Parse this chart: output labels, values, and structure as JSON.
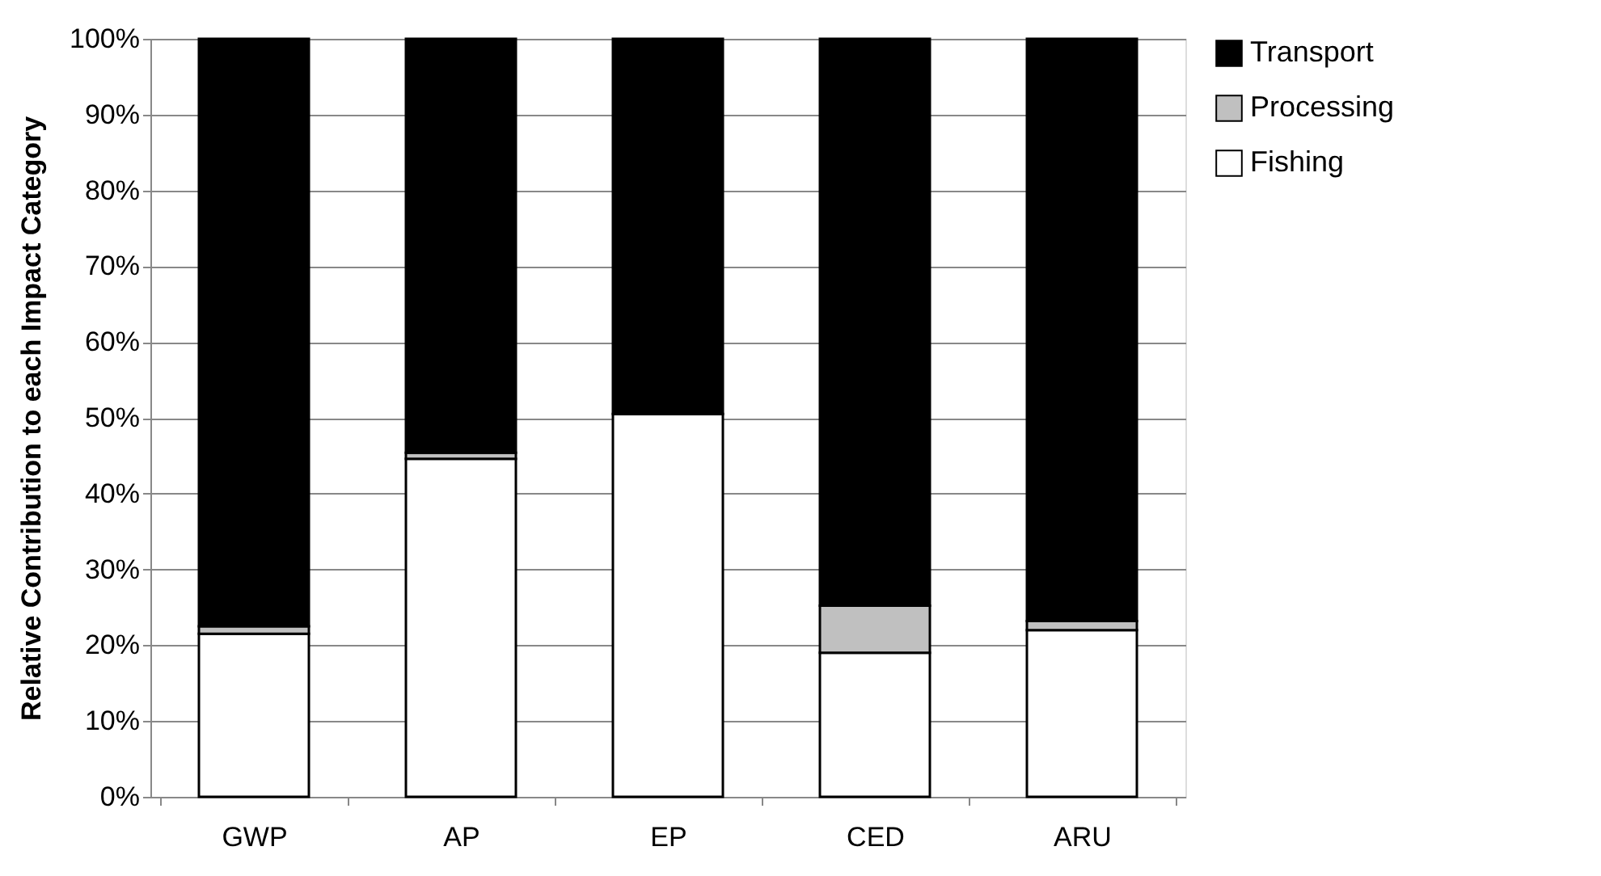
{
  "chart_data": {
    "type": "bar",
    "stacked": true,
    "ylabel": "Relative Contribution to each Impact Category",
    "categories": [
      "GWP",
      "AP",
      "EP",
      "CED",
      "ARU"
    ],
    "series": [
      {
        "name": "Fishing",
        "color": "#ffffff",
        "values": [
          21.5,
          44.6,
          50.5,
          19.0,
          22.0
        ]
      },
      {
        "name": "Processing",
        "color": "#c0c0c0",
        "values": [
          1.0,
          0.8,
          0,
          6.2,
          1.2
        ]
      },
      {
        "name": "Transport",
        "color": "#000000",
        "values": [
          77.5,
          54.6,
          49.5,
          74.8,
          76.8
        ]
      }
    ],
    "ylim": [
      0,
      100
    ],
    "yticks": [
      {
        "value": 0,
        "label": "0%"
      },
      {
        "value": 10,
        "label": "10%"
      },
      {
        "value": 20,
        "label": "20%"
      },
      {
        "value": 30,
        "label": "30%"
      },
      {
        "value": 40,
        "label": "40%"
      },
      {
        "value": 50,
        "label": "50%"
      },
      {
        "value": 60,
        "label": "60%"
      },
      {
        "value": 70,
        "label": "70%"
      },
      {
        "value": 80,
        "label": "80%"
      },
      {
        "value": 90,
        "label": "90%"
      },
      {
        "value": 100,
        "label": "100%"
      }
    ],
    "grid": "y",
    "legend": "right"
  }
}
